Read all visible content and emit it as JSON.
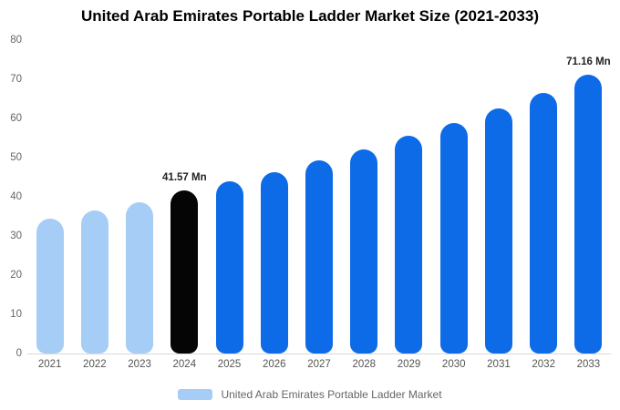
{
  "chart_data": {
    "type": "bar",
    "title": "United Arab Emirates Portable Ladder Market Size (2021-2033)",
    "unit": "Mn",
    "categories": [
      "2021",
      "2022",
      "2023",
      "2024",
      "2025",
      "2026",
      "2027",
      "2028",
      "2029",
      "2030",
      "2031",
      "2032",
      "2033"
    ],
    "values": [
      34.4,
      36.6,
      38.7,
      41.57,
      43.9,
      46.3,
      49.2,
      52.2,
      55.5,
      58.8,
      62.5,
      66.6,
      71.16
    ],
    "colors": [
      "light_blue",
      "light_blue",
      "light_blue",
      "black",
      "blue",
      "blue",
      "blue",
      "blue",
      "blue",
      "blue",
      "blue",
      "blue",
      "blue"
    ],
    "palette": {
      "light_blue": "#a6cdf5",
      "black": "#050505",
      "blue": "#0d6be8"
    },
    "xlabel": "",
    "ylabel": "",
    "ylim": [
      0,
      80
    ],
    "yticks": [
      0,
      10,
      20,
      30,
      40,
      50,
      60,
      70,
      80
    ],
    "grid": false,
    "data_labels": [
      {
        "category": "2024",
        "text": "41.57 Mn"
      },
      {
        "category": "2033",
        "text": "71.16 Mn"
      }
    ],
    "legend": {
      "position": "bottom",
      "items": [
        {
          "label": "United Arab Emirates Portable Ladder Market",
          "color": "#a6cdf5"
        }
      ]
    }
  }
}
